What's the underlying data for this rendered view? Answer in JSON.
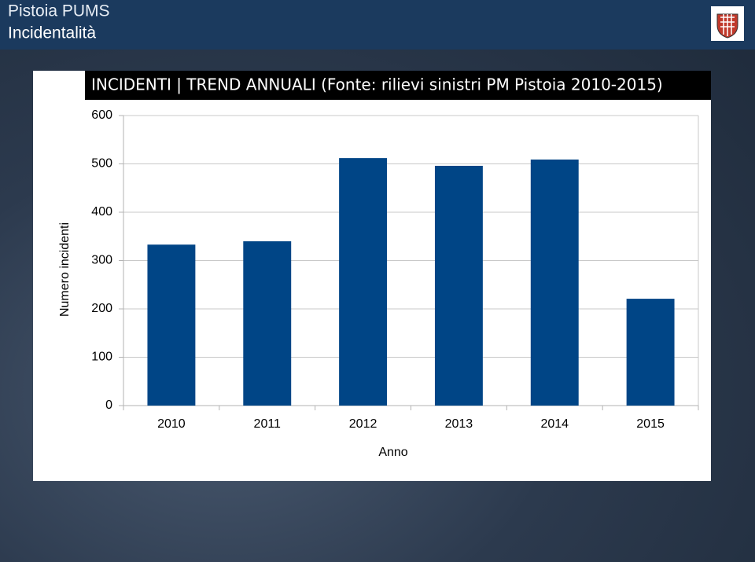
{
  "header": {
    "title": "Pistoia PUMS",
    "subtitle": "Incidentalità"
  },
  "chart_data": {
    "type": "bar",
    "title": "INCIDENTI | TREND ANNUALI  (Fonte: rilievi sinistri PM Pistoia 2010-2015)",
    "x_label": "Anno",
    "y_label": "Numero incidenti",
    "categories": [
      "2010",
      "2011",
      "2012",
      "2013",
      "2014",
      "2015"
    ],
    "values": [
      333,
      340,
      512,
      496,
      509,
      221
    ],
    "color": "#004586",
    "ylim": [
      0,
      600
    ],
    "yticks": [
      0,
      100,
      200,
      300,
      400,
      500,
      600
    ],
    "grid": true
  }
}
